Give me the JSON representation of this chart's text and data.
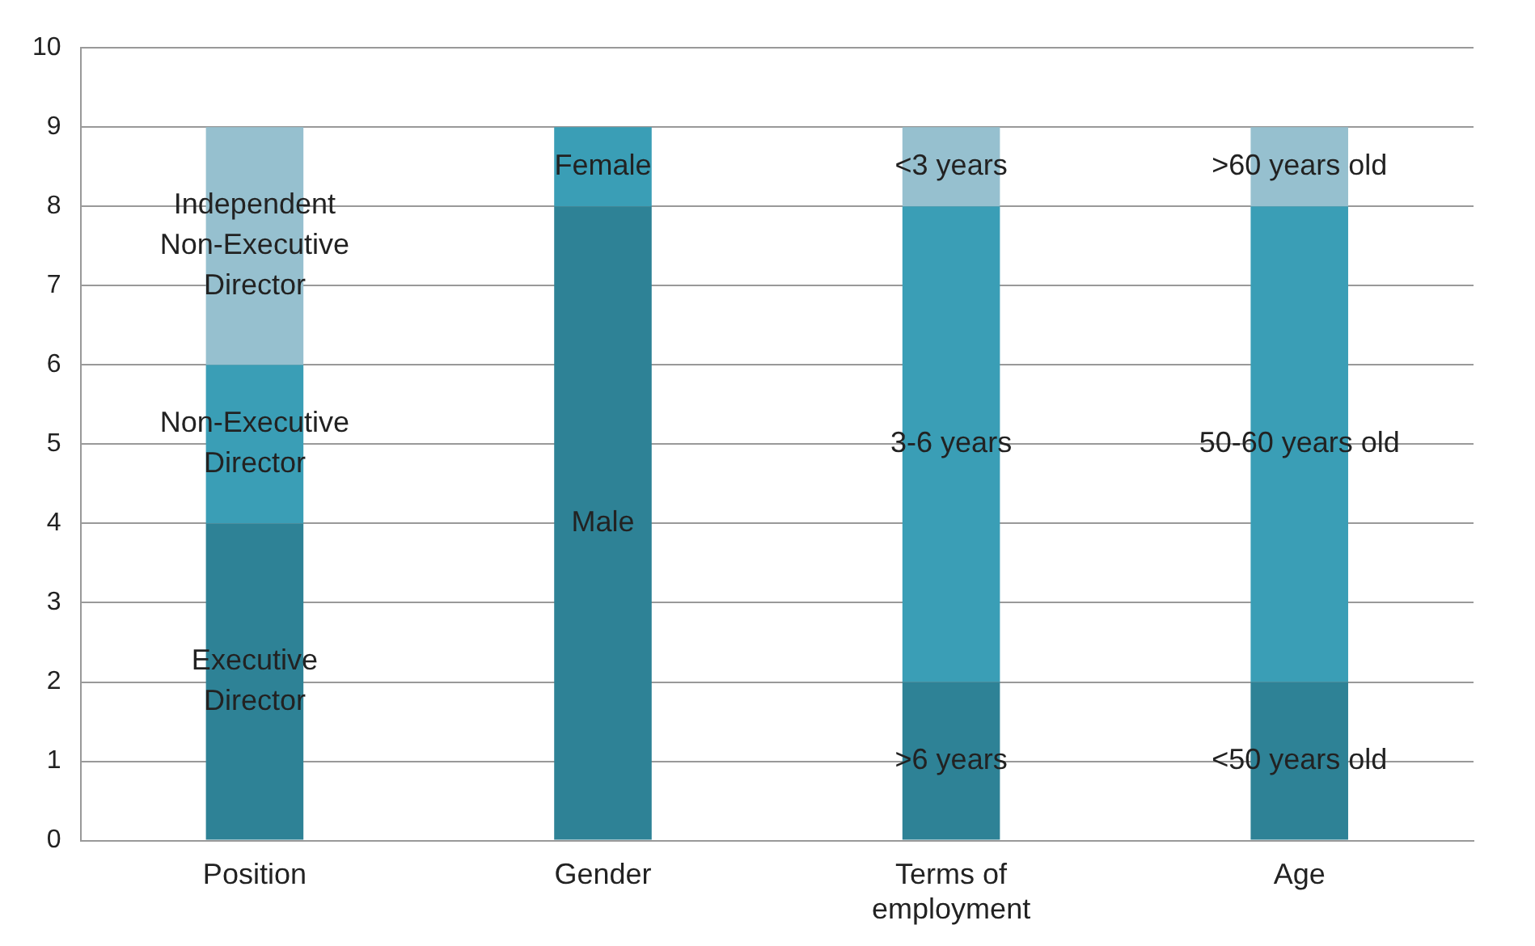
{
  "chart_data": {
    "type": "bar",
    "stacked": true,
    "categories": [
      "Position",
      "Gender",
      "Terms of employment",
      "Age"
    ],
    "series": [
      {
        "colors": [
          "#2e8296",
          "#2e8296",
          "#2e8296",
          "#2e8296"
        ],
        "values": [
          4,
          8,
          2,
          2
        ],
        "value_labels": [
          "Executive Director",
          "Male",
          ">6 years",
          "<50 years old"
        ]
      },
      {
        "colors": [
          "#3a9eb6",
          "#3a9eb6",
          "#3a9eb6",
          "#3a9eb6"
        ],
        "values": [
          2,
          1,
          6,
          6
        ],
        "value_labels": [
          "Non-Executive Director",
          "Female",
          "3-6 years",
          "50-60 years old"
        ]
      },
      {
        "colors": [
          "#96c0cf",
          "#96c0cf",
          "#96c0cf",
          "#96c0cf"
        ],
        "values": [
          3,
          null,
          1,
          1
        ],
        "value_labels": [
          "Independent Non-Executive Director",
          null,
          "<3 years",
          ">60 years old"
        ]
      }
    ],
    "ylim": [
      0,
      10
    ],
    "yticks": [
      0,
      1,
      2,
      3,
      4,
      5,
      6,
      7,
      8,
      9,
      10
    ],
    "grid": "y",
    "legend": false
  }
}
